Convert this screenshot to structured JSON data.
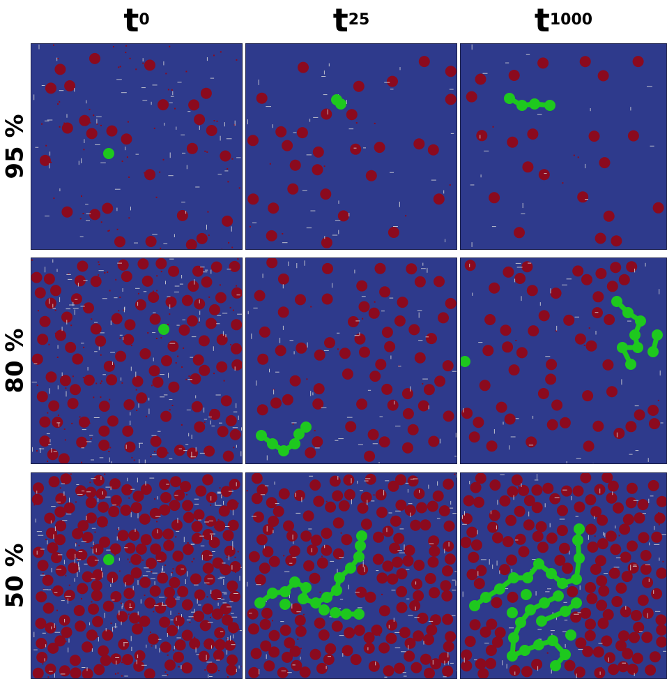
{
  "columns": [
    {
      "base": "t",
      "sub": "0"
    },
    {
      "base": "t",
      "sub": "25"
    },
    {
      "base": "t",
      "sub": "1000"
    }
  ],
  "rows": [
    {
      "label": "95 %"
    },
    {
      "label": "80 %"
    },
    {
      "label": "50 %"
    }
  ],
  "colors": {
    "background": "#2e3a8c",
    "red_particle": "#8b0a1e",
    "green_cluster": "#1ec81e",
    "mark": "#d8d8d8"
  }
}
